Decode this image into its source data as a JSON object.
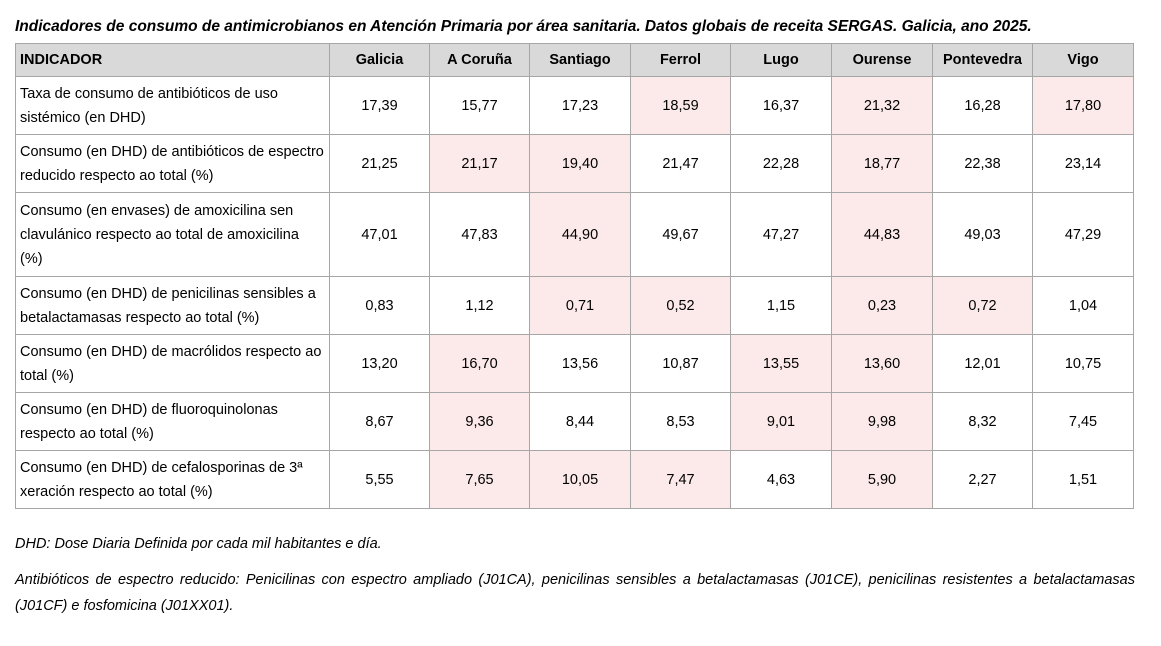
{
  "title": "Indicadores de consumo de antimicrobianos en Atención Primaria por área sanitaria. Datos globais de receita SERGAS. Galicia, ano 2025.",
  "headers": [
    "INDICADOR",
    "Galicia",
    "A Coruña",
    "Santiago",
    "Ferrol",
    "Lugo",
    "Ourense",
    "Pontevedra",
    "Vigo"
  ],
  "rows": [
    {
      "label": "Taxa de consumo de antibióticos de uso sistémico (en DHD)",
      "values": [
        "17,39",
        "15,77",
        "17,23",
        "18,59",
        "16,37",
        "21,32",
        "16,28",
        "17,80"
      ],
      "highlight": [
        false,
        false,
        false,
        true,
        false,
        true,
        false,
        true
      ]
    },
    {
      "label": "Consumo (en DHD) de antibióticos de espectro reducido respecto ao total (%)",
      "values": [
        "21,25",
        "21,17",
        "19,40",
        "21,47",
        "22,28",
        "18,77",
        "22,38",
        "23,14"
      ],
      "highlight": [
        false,
        true,
        true,
        false,
        false,
        true,
        false,
        false
      ]
    },
    {
      "label": "Consumo (en envases) de amoxicilina sen clavulánico respecto ao total de amoxicilina (%)",
      "values": [
        "47,01",
        "47,83",
        "44,90",
        "49,67",
        "47,27",
        "44,83",
        "49,03",
        "47,29"
      ],
      "highlight": [
        false,
        false,
        true,
        false,
        false,
        true,
        false,
        false
      ]
    },
    {
      "label": "Consumo (en DHD) de penicilinas sensibles a betalactamasas respecto ao total (%)",
      "values": [
        "0,83",
        "1,12",
        "0,71",
        "0,52",
        "1,15",
        "0,23",
        "0,72",
        "1,04"
      ],
      "highlight": [
        false,
        false,
        true,
        true,
        false,
        true,
        true,
        false
      ]
    },
    {
      "label": "Consumo (en DHD) de macrólidos respecto ao total (%)",
      "values": [
        "13,20",
        "16,70",
        "13,56",
        "10,87",
        "13,55",
        "13,60",
        "12,01",
        "10,75"
      ],
      "highlight": [
        false,
        true,
        false,
        false,
        true,
        true,
        false,
        false
      ]
    },
    {
      "label": "Consumo (en DHD) de fluoroquinolonas respecto ao total (%)",
      "values": [
        "8,67",
        "9,36",
        "8,44",
        "8,53",
        "9,01",
        "9,98",
        "8,32",
        "7,45"
      ],
      "highlight": [
        false,
        true,
        false,
        false,
        true,
        true,
        false,
        false
      ]
    },
    {
      "label": "Consumo (en DHD) de cefalosporinas de 3ª xeración respecto ao total (%)",
      "values": [
        "5,55",
        "7,65",
        "10,05",
        "7,47",
        "4,63",
        "5,90",
        "2,27",
        "1,51"
      ],
      "highlight": [
        false,
        true,
        true,
        true,
        false,
        true,
        false,
        false
      ]
    }
  ],
  "notes": {
    "dhd": "DHD: Dose Diaria Definida por cada mil habitantes e día.",
    "spectrum": "Antibióticos de espectro reducido: Penicilinas con espectro ampliado (J01CA), penicilinas sensibles a betalactamasas (J01CE), penicilinas resistentes a betalactamasas (J01CF) e fosfomicina (J01XX01)."
  },
  "colors": {
    "header_bg": "#d9d9d9",
    "highlight_bg": "#fce9e9",
    "border": "#a6a6a6"
  }
}
